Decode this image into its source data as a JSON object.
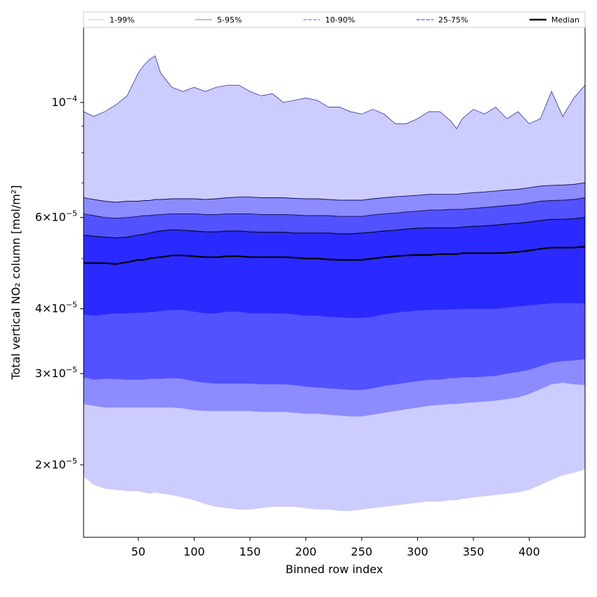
{
  "chart_data": {
    "type": "area",
    "title": "",
    "xlabel": "Binned row index",
    "ylabel": "Total vertical NO₂ column [mol/m²]",
    "y_scale": "log",
    "xlim": [
      1,
      450
    ],
    "ylim": [
      1.45e-05,
      0.00014
    ],
    "x_ticks": [
      50,
      100,
      150,
      200,
      250,
      300,
      350,
      400
    ],
    "x_tick_labels": [
      "50",
      "100",
      "150",
      "200",
      "250",
      "300",
      "350",
      "400"
    ],
    "y_ticks": [
      {
        "value": 2e-05,
        "mantissa": "2",
        "exponent": "−5"
      },
      {
        "value": 3e-05,
        "mantissa": "3",
        "exponent": "−5"
      },
      {
        "value": 4e-05,
        "mantissa": "4",
        "exponent": "−5"
      },
      {
        "value": 6e-05,
        "mantissa": "6",
        "exponent": "−5"
      },
      {
        "value": 0.0001,
        "mantissa": "10",
        "exponent": "−4"
      }
    ],
    "y_minor_ticks": [
      5e-05,
      7e-05,
      8e-05,
      9e-05
    ],
    "grid": false,
    "legend_position": "top",
    "legend": [
      {
        "label": "1-99%",
        "color": "#ccccff",
        "style": "solid"
      },
      {
        "label": "5-95%",
        "color": "#8c8cff",
        "style": "solid"
      },
      {
        "label": "10-90%",
        "color": "#8080ff",
        "style": "dashed"
      },
      {
        "label": "25-75%",
        "color": "#5555ee",
        "style": "dashed"
      },
      {
        "label": "Median",
        "color": "#000000",
        "style": "solid"
      }
    ],
    "band_colors": {
      "p1_99": "#ccccff",
      "p5_95": "#8c8cff",
      "p10_90": "#5252ff",
      "p25_75": "#2a2aff"
    },
    "x": [
      1,
      10,
      20,
      30,
      40,
      50,
      55,
      60,
      65,
      70,
      80,
      90,
      100,
      110,
      120,
      130,
      140,
      150,
      160,
      170,
      180,
      190,
      200,
      210,
      220,
      230,
      240,
      250,
      260,
      270,
      280,
      290,
      300,
      310,
      320,
      330,
      335,
      340,
      350,
      360,
      370,
      380,
      390,
      400,
      410,
      420,
      430,
      440,
      450
    ],
    "series": [
      {
        "name": "",
        "percentile": "p99",
        "values": [
          9.6e-05,
          9.4e-05,
          9.6e-05,
          9.9e-05,
          0.000103,
          0.000114,
          0.000118,
          0.000121,
          0.000123,
          0.000114,
          0.000107,
          0.000105,
          0.000107,
          0.000105,
          0.000107,
          0.000108,
          0.000108,
          0.000105,
          0.000103,
          0.000104,
          0.0001,
          0.000101,
          0.000102,
          0.000101,
          9.8e-05,
          9.8e-05,
          9.6e-05,
          9.5e-05,
          9.7e-05,
          9.5e-05,
          9.1e-05,
          9.1e-05,
          9.3e-05,
          9.6e-05,
          9.6e-05,
          9.2e-05,
          8.9e-05,
          9.3e-05,
          9.7e-05,
          9.5e-05,
          9.8e-05,
          9.3e-05,
          9.6e-05,
          9.1e-05,
          9.3e-05,
          0.000105,
          9.4e-05,
          0.000102,
          0.000108
        ]
      },
      {
        "name": "",
        "percentile": "p95",
        "values": [
          6.55e-05,
          6.5e-05,
          6.45e-05,
          6.42e-05,
          6.45e-05,
          6.45e-05,
          6.47e-05,
          6.47e-05,
          6.5e-05,
          6.5e-05,
          6.52e-05,
          6.52e-05,
          6.52e-05,
          6.5e-05,
          6.52e-05,
          6.55e-05,
          6.57e-05,
          6.57e-05,
          6.55e-05,
          6.55e-05,
          6.55e-05,
          6.53e-05,
          6.52e-05,
          6.52e-05,
          6.5e-05,
          6.48e-05,
          6.48e-05,
          6.48e-05,
          6.52e-05,
          6.55e-05,
          6.58e-05,
          6.6e-05,
          6.62e-05,
          6.65e-05,
          6.65e-05,
          6.65e-05,
          6.65e-05,
          6.67e-05,
          6.7e-05,
          6.72e-05,
          6.75e-05,
          6.78e-05,
          6.8e-05,
          6.85e-05,
          6.9e-05,
          6.92e-05,
          6.93e-05,
          6.95e-05,
          7e-05
        ]
      },
      {
        "name": "",
        "percentile": "p90",
        "values": [
          6.1e-05,
          6.05e-05,
          6e-05,
          5.98e-05,
          6e-05,
          6.03e-05,
          6.05e-05,
          6.05e-05,
          6.07e-05,
          6.08e-05,
          6.1e-05,
          6.1e-05,
          6.1e-05,
          6.08e-05,
          6.08e-05,
          6.1e-05,
          6.1e-05,
          6.1e-05,
          6.08e-05,
          6.08e-05,
          6.08e-05,
          6.07e-05,
          6.05e-05,
          6.05e-05,
          6.05e-05,
          6.03e-05,
          6.03e-05,
          6.03e-05,
          6.07e-05,
          6.1e-05,
          6.12e-05,
          6.15e-05,
          6.17e-05,
          6.2e-05,
          6.2e-05,
          6.22e-05,
          6.22e-05,
          6.22e-05,
          6.25e-05,
          6.27e-05,
          6.3e-05,
          6.33e-05,
          6.35e-05,
          6.4e-05,
          6.45e-05,
          6.47e-05,
          6.48e-05,
          6.5e-05,
          6.55e-05
        ]
      },
      {
        "name": "",
        "percentile": "p75",
        "values": [
          5.55e-05,
          5.52e-05,
          5.5e-05,
          5.48e-05,
          5.5e-05,
          5.55e-05,
          5.57e-05,
          5.6e-05,
          5.63e-05,
          5.65e-05,
          5.68e-05,
          5.67e-05,
          5.65e-05,
          5.63e-05,
          5.63e-05,
          5.65e-05,
          5.65e-05,
          5.63e-05,
          5.62e-05,
          5.62e-05,
          5.62e-05,
          5.6e-05,
          5.6e-05,
          5.6e-05,
          5.6e-05,
          5.58e-05,
          5.58e-05,
          5.6e-05,
          5.62e-05,
          5.65e-05,
          5.67e-05,
          5.7e-05,
          5.72e-05,
          5.73e-05,
          5.73e-05,
          5.73e-05,
          5.73e-05,
          5.75e-05,
          5.77e-05,
          5.78e-05,
          5.8e-05,
          5.83e-05,
          5.85e-05,
          5.88e-05,
          5.92e-05,
          5.95e-05,
          5.95e-05,
          5.97e-05,
          6e-05
        ]
      },
      {
        "name": "",
        "percentile": "p50",
        "values": [
          4.9e-05,
          4.9e-05,
          4.9e-05,
          4.88e-05,
          4.92e-05,
          4.97e-05,
          4.97e-05,
          5e-05,
          5.02e-05,
          5.03e-05,
          5.07e-05,
          5.07e-05,
          5.05e-05,
          5.03e-05,
          5.03e-05,
          5.05e-05,
          5.05e-05,
          5.03e-05,
          5.03e-05,
          5.03e-05,
          5.03e-05,
          5.02e-05,
          5e-05,
          5e-05,
          4.98e-05,
          4.97e-05,
          4.97e-05,
          4.97e-05,
          5e-05,
          5.03e-05,
          5.05e-05,
          5.07e-05,
          5.08e-05,
          5.08e-05,
          5.1e-05,
          5.1e-05,
          5.1e-05,
          5.12e-05,
          5.12e-05,
          5.12e-05,
          5.12e-05,
          5.13e-05,
          5.15e-05,
          5.18e-05,
          5.22e-05,
          5.25e-05,
          5.25e-05,
          5.25e-05,
          5.27e-05
        ]
      },
      {
        "name": "",
        "percentile": "p25",
        "values": [
          3.9e-05,
          3.88e-05,
          3.9e-05,
          3.92e-05,
          3.92e-05,
          3.93e-05,
          3.93e-05,
          3.94e-05,
          3.95e-05,
          3.96e-05,
          3.98e-05,
          3.98e-05,
          3.95e-05,
          3.92e-05,
          3.92e-05,
          3.95e-05,
          3.95e-05,
          3.92e-05,
          3.92e-05,
          3.92e-05,
          3.92e-05,
          3.9e-05,
          3.88e-05,
          3.88e-05,
          3.86e-05,
          3.85e-05,
          3.84e-05,
          3.84e-05,
          3.86e-05,
          3.9e-05,
          3.93e-05,
          3.95e-05,
          3.97e-05,
          3.98e-05,
          3.98e-05,
          3.99e-05,
          3.99e-05,
          4e-05,
          4e-05,
          4e-05,
          4e-05,
          4.02e-05,
          4.04e-05,
          4.06e-05,
          4.08e-05,
          4.1e-05,
          4.1e-05,
          4.1e-05,
          4.1e-05
        ]
      },
      {
        "name": "",
        "percentile": "p10",
        "values": [
          2.95e-05,
          2.92e-05,
          2.93e-05,
          2.93e-05,
          2.92e-05,
          2.92e-05,
          2.92e-05,
          2.93e-05,
          2.93e-05,
          2.93e-05,
          2.94e-05,
          2.93e-05,
          2.9e-05,
          2.88e-05,
          2.87e-05,
          2.87e-05,
          2.87e-05,
          2.87e-05,
          2.86e-05,
          2.86e-05,
          2.86e-05,
          2.85e-05,
          2.83e-05,
          2.82e-05,
          2.81e-05,
          2.8e-05,
          2.79e-05,
          2.79e-05,
          2.81e-05,
          2.84e-05,
          2.86e-05,
          2.88e-05,
          2.9e-05,
          2.92e-05,
          2.92e-05,
          2.94e-05,
          2.94e-05,
          2.95e-05,
          2.95e-05,
          2.96e-05,
          2.97e-05,
          3e-05,
          3.02e-05,
          3.05e-05,
          3.1e-05,
          3.15e-05,
          3.17e-05,
          3.18e-05,
          3.2e-05
        ]
      },
      {
        "name": "",
        "percentile": "p5",
        "values": [
          2.62e-05,
          2.6e-05,
          2.58e-05,
          2.58e-05,
          2.58e-05,
          2.58e-05,
          2.58e-05,
          2.58e-05,
          2.58e-05,
          2.58e-05,
          2.58e-05,
          2.57e-05,
          2.55e-05,
          2.54e-05,
          2.54e-05,
          2.54e-05,
          2.54e-05,
          2.54e-05,
          2.53e-05,
          2.53e-05,
          2.53e-05,
          2.52e-05,
          2.51e-05,
          2.51e-05,
          2.5e-05,
          2.49e-05,
          2.48e-05,
          2.48e-05,
          2.5e-05,
          2.52e-05,
          2.54e-05,
          2.56e-05,
          2.58e-05,
          2.6e-05,
          2.61e-05,
          2.62e-05,
          2.62e-05,
          2.63e-05,
          2.64e-05,
          2.65e-05,
          2.66e-05,
          2.68e-05,
          2.7e-05,
          2.74e-05,
          2.8e-05,
          2.86e-05,
          2.88e-05,
          2.86e-05,
          2.85e-05
        ]
      },
      {
        "name": "",
        "percentile": "p1",
        "values": [
          1.9e-05,
          1.83e-05,
          1.8e-05,
          1.79e-05,
          1.78e-05,
          1.78e-05,
          1.77e-05,
          1.76e-05,
          1.77e-05,
          1.76e-05,
          1.75e-05,
          1.73e-05,
          1.71e-05,
          1.68e-05,
          1.66e-05,
          1.65e-05,
          1.64e-05,
          1.64e-05,
          1.65e-05,
          1.66e-05,
          1.66e-05,
          1.66e-05,
          1.65e-05,
          1.64e-05,
          1.64e-05,
          1.63e-05,
          1.63e-05,
          1.64e-05,
          1.65e-05,
          1.66e-05,
          1.67e-05,
          1.68e-05,
          1.69e-05,
          1.7e-05,
          1.7e-05,
          1.71e-05,
          1.71e-05,
          1.72e-05,
          1.73e-05,
          1.74e-05,
          1.75e-05,
          1.76e-05,
          1.77e-05,
          1.79e-05,
          1.83e-05,
          1.87e-05,
          1.91e-05,
          1.93e-05,
          1.96e-05
        ]
      }
    ]
  }
}
